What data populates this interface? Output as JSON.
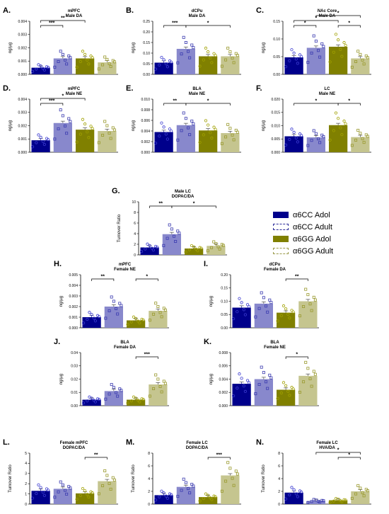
{
  "legend": {
    "items": [
      {
        "label": "α6CC Adol",
        "color": "#00008b",
        "pattern": "solid"
      },
      {
        "label": "α6CC Adult",
        "color": "#2e2e9a",
        "pattern": "hollow"
      },
      {
        "label": "α6GG Adol",
        "color": "#808000",
        "pattern": "solid"
      },
      {
        "label": "α6GG Adult",
        "color": "#9a9a4a",
        "pattern": "hollow"
      }
    ]
  },
  "colors": {
    "cc_adol": "#00008b",
    "cc_adult": "#8888cc",
    "gg_adol": "#808000",
    "gg_adult": "#c5c58f"
  },
  "chart_data": [
    {
      "type": "bar",
      "panel": "A.",
      "title": [
        "mPFC",
        "Male DA"
      ],
      "ylabel": "ng/µg",
      "ylim": [
        0,
        0.004
      ],
      "yticks": [
        "0.000",
        "0.001",
        "0.002",
        "0.003",
        "0.004"
      ],
      "values": [
        0.0005,
        0.0012,
        0.0012,
        0.0009
      ],
      "sig": [
        {
          "from": 0,
          "to": 1,
          "label": "***",
          "level": 0
        },
        {
          "from": 0,
          "to": 2,
          "label": "**",
          "level": 1
        }
      ]
    },
    {
      "type": "bar",
      "panel": "B.",
      "title": [
        "dCPu",
        "Male DA"
      ],
      "ylabel": "ng/µg",
      "ylim": [
        0,
        0.25
      ],
      "yticks": [
        "0.00",
        "0.05",
        "0.10",
        "0.15",
        "0.20",
        "0.25"
      ],
      "values": [
        0.055,
        0.12,
        0.085,
        0.085
      ],
      "sig": [
        {
          "from": 0,
          "to": 1,
          "label": "***",
          "level": 0
        },
        {
          "from": 1,
          "to": 3,
          "label": "*",
          "level": 0
        }
      ]
    },
    {
      "type": "bar",
      "panel": "C.",
      "title": [
        "NAc Core",
        "Male DA"
      ],
      "ylabel": "ng/µg",
      "ylim": [
        0,
        0.15
      ],
      "yticks": [
        "0.00",
        "0.05",
        "0.10",
        "0.15"
      ],
      "values": [
        0.048,
        0.075,
        0.078,
        0.045
      ],
      "sig": [
        {
          "from": 0,
          "to": 1,
          "label": "*",
          "level": 0
        },
        {
          "from": 2,
          "to": 3,
          "label": "*",
          "level": 0
        },
        {
          "from": 0,
          "to": 2,
          "label": "*",
          "level": 1
        },
        {
          "from": 1,
          "to": 3,
          "label": "*",
          "level": 2
        }
      ]
    },
    {
      "type": "bar",
      "panel": "D.",
      "title": [
        "mPFC",
        "Male NE"
      ],
      "ylabel": "ng/µg",
      "ylim": [
        0,
        0.004
      ],
      "yticks": [
        "0.000",
        "0.001",
        "0.002",
        "0.003",
        "0.004"
      ],
      "values": [
        0.0009,
        0.0022,
        0.0017,
        0.0016
      ],
      "sig": [
        {
          "from": 0,
          "to": 1,
          "label": "***",
          "level": 0
        },
        {
          "from": 0,
          "to": 2,
          "label": "*",
          "level": 1
        }
      ]
    },
    {
      "type": "bar",
      "panel": "E.",
      "title": [
        "BLA",
        "Male NE"
      ],
      "ylabel": "ng/µg",
      "ylim": [
        0,
        0.01
      ],
      "yticks": [
        "0.000",
        "0.002",
        "0.004",
        "0.006",
        "0.008",
        "0.010"
      ],
      "values": [
        0.0038,
        0.0051,
        0.0041,
        0.0036
      ],
      "sig": [
        {
          "from": 0,
          "to": 1,
          "label": "**",
          "level": 0
        },
        {
          "from": 1,
          "to": 3,
          "label": "*",
          "level": 0
        }
      ]
    },
    {
      "type": "bar",
      "panel": "F.",
      "title": [
        "LC",
        "Male NE"
      ],
      "ylabel": "ng/µg",
      "ylim": [
        0,
        0.02
      ],
      "yticks": [
        "0.000",
        "0.005",
        "0.010",
        "0.015",
        "0.020"
      ],
      "values": [
        0.006,
        0.0056,
        0.0102,
        0.0057
      ],
      "sig": [
        {
          "from": 0,
          "to": 2,
          "label": "*",
          "level": 0
        },
        {
          "from": 2,
          "to": 3,
          "label": "*",
          "level": 0
        }
      ]
    },
    {
      "type": "bar",
      "panel": "G.",
      "title": [
        "Male LC",
        "DOPAC/DA"
      ],
      "ylabel": "Turnover Ratio",
      "ylim": [
        0,
        10
      ],
      "yticks": [
        "0",
        "2",
        "4",
        "6",
        "8",
        "10"
      ],
      "values": [
        1.4,
        3.9,
        1.2,
        1.7
      ],
      "sig": [
        {
          "from": 0,
          "to": 1,
          "label": "**",
          "level": 0
        },
        {
          "from": 1,
          "to": 3,
          "label": "*",
          "level": 0
        }
      ]
    },
    {
      "type": "bar",
      "panel": "H.",
      "title": [
        "mPFC",
        "Female NE"
      ],
      "ylabel": "ng/µg",
      "ylim": [
        0,
        0.005
      ],
      "yticks": [
        "0.000",
        "0.001",
        "0.002",
        "0.003",
        "0.004",
        "0.005"
      ],
      "values": [
        0.001,
        0.002,
        0.0007,
        0.0016
      ],
      "sig": [
        {
          "from": 0,
          "to": 1,
          "label": "**",
          "level": 0
        },
        {
          "from": 2,
          "to": 3,
          "label": "*",
          "level": 0
        }
      ]
    },
    {
      "type": "bar",
      "panel": "I.",
      "title": [
        "dCPu",
        "Female DA"
      ],
      "ylabel": "ng/µg",
      "ylim": [
        0,
        0.2
      ],
      "yticks": [
        "0.00",
        "0.05",
        "0.10",
        "0.15",
        "0.20"
      ],
      "values": [
        0.076,
        0.091,
        0.057,
        0.1
      ],
      "sig": [
        {
          "from": 2,
          "to": 3,
          "label": "**",
          "level": 0
        }
      ]
    },
    {
      "type": "bar",
      "panel": "J.",
      "title": [
        "BLA",
        "Female DA"
      ],
      "ylabel": "ng/µg",
      "ylim": [
        0,
        0.04
      ],
      "yticks": [
        "0.00",
        "0.01",
        "0.02",
        "0.03",
        "0.04"
      ],
      "values": [
        0.0045,
        0.011,
        0.0045,
        0.016
      ],
      "sig": [
        {
          "from": 2,
          "to": 3,
          "label": "***",
          "level": 0
        }
      ]
    },
    {
      "type": "bar",
      "panel": "K.",
      "title": [
        "BLA",
        "Female NE"
      ],
      "ylabel": "ng/µg",
      "ylim": [
        0,
        0.008
      ],
      "yticks": [
        "0.000",
        "0.002",
        "0.004",
        "0.006",
        "0.008"
      ],
      "values": [
        0.0033,
        0.004,
        0.0024,
        0.0045
      ],
      "sig": [
        {
          "from": 2,
          "to": 3,
          "label": "*",
          "level": 0
        }
      ]
    },
    {
      "type": "bar",
      "panel": "L.",
      "title": [
        "Female mPFC",
        "DOPAC/DA"
      ],
      "ylabel": "Turnover Ratio",
      "ylim": [
        0,
        5
      ],
      "yticks": [
        "0",
        "1",
        "2",
        "3",
        "4",
        "5"
      ],
      "values": [
        1.3,
        1.5,
        1.05,
        2.25
      ],
      "sig": [
        {
          "from": 2,
          "to": 3,
          "label": "**",
          "level": 0
        }
      ]
    },
    {
      "type": "bar",
      "panel": "M.",
      "title": [
        "Female LC",
        "DOPAC/DA"
      ],
      "ylabel": "Turnover Ratio",
      "ylim": [
        0,
        8
      ],
      "yticks": [
        "0",
        "2",
        "4",
        "6",
        "8"
      ],
      "values": [
        1.4,
        2.7,
        1.1,
        4.5
      ],
      "sig": [
        {
          "from": 2,
          "to": 3,
          "label": "***",
          "level": 0
        }
      ]
    },
    {
      "type": "bar",
      "panel": "N.",
      "title": [
        "Female LC",
        "HVA/DA"
      ],
      "ylabel": "Turnover Ratio",
      "ylim": [
        0,
        8
      ],
      "yticks": [
        "0",
        "2",
        "4",
        "6",
        "8"
      ],
      "values": [
        1.8,
        0.5,
        0.6,
        2.0
      ],
      "sig": [
        {
          "from": 2,
          "to": 3,
          "label": "*",
          "level": 0
        },
        {
          "from": 1,
          "to": 3,
          "label": "*",
          "level": 1
        }
      ]
    }
  ]
}
